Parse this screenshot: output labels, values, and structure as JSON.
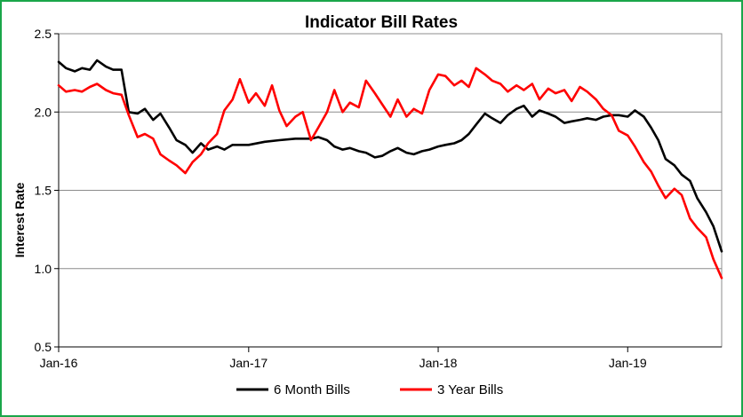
{
  "chart_data": {
    "type": "line",
    "title": "Indicator Bill Rates",
    "xlabel": "",
    "ylabel": "Interest Rate",
    "ylim": [
      0.5,
      2.5
    ],
    "yticks": [
      "0.5",
      "1.0",
      "1.5",
      "2.0",
      "2.5"
    ],
    "xlim": [
      "2016-01",
      "2019-07"
    ],
    "xticks": [
      {
        "date": "2016-01",
        "label": "Jan-16"
      },
      {
        "date": "2017-01",
        "label": "Jan-17"
      },
      {
        "date": "2018-01",
        "label": "Jan-18"
      },
      {
        "date": "2019-01",
        "label": "Jan-19"
      }
    ],
    "grid": "horizontal",
    "legend_position": "bottom",
    "series": [
      {
        "name": "6 Month Bills",
        "color": "#000000",
        "points": [
          [
            "2016-01-01",
            2.32
          ],
          [
            "2016-01-15",
            2.28
          ],
          [
            "2016-02-01",
            2.26
          ],
          [
            "2016-02-15",
            2.28
          ],
          [
            "2016-03-01",
            2.27
          ],
          [
            "2016-03-15",
            2.33
          ],
          [
            "2016-04-01",
            2.29
          ],
          [
            "2016-04-15",
            2.27
          ],
          [
            "2016-05-01",
            2.27
          ],
          [
            "2016-05-15",
            2.0
          ],
          [
            "2016-06-01",
            1.99
          ],
          [
            "2016-06-15",
            2.02
          ],
          [
            "2016-07-01",
            1.95
          ],
          [
            "2016-07-15",
            1.99
          ],
          [
            "2016-08-01",
            1.9
          ],
          [
            "2016-08-15",
            1.82
          ],
          [
            "2016-09-01",
            1.79
          ],
          [
            "2016-09-15",
            1.74
          ],
          [
            "2016-10-01",
            1.8
          ],
          [
            "2016-10-15",
            1.76
          ],
          [
            "2016-11-01",
            1.78
          ],
          [
            "2016-11-15",
            1.76
          ],
          [
            "2016-12-01",
            1.79
          ],
          [
            "2017-01-01",
            1.79
          ],
          [
            "2017-02-01",
            1.81
          ],
          [
            "2017-03-01",
            1.82
          ],
          [
            "2017-04-01",
            1.83
          ],
          [
            "2017-05-01",
            1.83
          ],
          [
            "2017-05-15",
            1.84
          ],
          [
            "2017-06-01",
            1.82
          ],
          [
            "2017-06-15",
            1.78
          ],
          [
            "2017-07-01",
            1.76
          ],
          [
            "2017-07-15",
            1.77
          ],
          [
            "2017-08-01",
            1.75
          ],
          [
            "2017-08-15",
            1.74
          ],
          [
            "2017-09-01",
            1.71
          ],
          [
            "2017-09-15",
            1.72
          ],
          [
            "2017-10-01",
            1.75
          ],
          [
            "2017-10-15",
            1.77
          ],
          [
            "2017-11-01",
            1.74
          ],
          [
            "2017-11-15",
            1.73
          ],
          [
            "2017-12-01",
            1.75
          ],
          [
            "2017-12-15",
            1.76
          ],
          [
            "2018-01-01",
            1.78
          ],
          [
            "2018-01-15",
            1.79
          ],
          [
            "2018-02-01",
            1.8
          ],
          [
            "2018-02-15",
            1.82
          ],
          [
            "2018-03-01",
            1.86
          ],
          [
            "2018-03-15",
            1.92
          ],
          [
            "2018-04-01",
            1.99
          ],
          [
            "2018-04-15",
            1.96
          ],
          [
            "2018-05-01",
            1.93
          ],
          [
            "2018-05-15",
            1.98
          ],
          [
            "2018-06-01",
            2.02
          ],
          [
            "2018-06-15",
            2.04
          ],
          [
            "2018-07-01",
            1.97
          ],
          [
            "2018-07-15",
            2.01
          ],
          [
            "2018-08-01",
            1.99
          ],
          [
            "2018-08-15",
            1.97
          ],
          [
            "2018-09-01",
            1.93
          ],
          [
            "2018-09-15",
            1.94
          ],
          [
            "2018-10-01",
            1.95
          ],
          [
            "2018-10-15",
            1.96
          ],
          [
            "2018-11-01",
            1.95
          ],
          [
            "2018-11-15",
            1.97
          ],
          [
            "2018-12-01",
            1.98
          ],
          [
            "2018-12-15",
            1.98
          ],
          [
            "2019-01-01",
            1.97
          ],
          [
            "2019-01-15",
            2.01
          ],
          [
            "2019-02-01",
            1.97
          ],
          [
            "2019-02-15",
            1.9
          ],
          [
            "2019-03-01",
            1.82
          ],
          [
            "2019-03-15",
            1.7
          ],
          [
            "2019-04-01",
            1.66
          ],
          [
            "2019-04-15",
            1.6
          ],
          [
            "2019-05-01",
            1.56
          ],
          [
            "2019-05-15",
            1.45
          ],
          [
            "2019-06-01",
            1.36
          ],
          [
            "2019-06-15",
            1.27
          ],
          [
            "2019-07-01",
            1.11
          ]
        ]
      },
      {
        "name": "3 Year Bills",
        "color": "#ff0000",
        "points": [
          [
            "2016-01-01",
            2.17
          ],
          [
            "2016-01-15",
            2.13
          ],
          [
            "2016-02-01",
            2.14
          ],
          [
            "2016-02-15",
            2.13
          ],
          [
            "2016-03-01",
            2.16
          ],
          [
            "2016-03-15",
            2.18
          ],
          [
            "2016-04-01",
            2.14
          ],
          [
            "2016-04-15",
            2.12
          ],
          [
            "2016-05-01",
            2.11
          ],
          [
            "2016-05-15",
            1.98
          ],
          [
            "2016-06-01",
            1.84
          ],
          [
            "2016-06-15",
            1.86
          ],
          [
            "2016-07-01",
            1.83
          ],
          [
            "2016-07-15",
            1.73
          ],
          [
            "2016-08-01",
            1.69
          ],
          [
            "2016-08-15",
            1.66
          ],
          [
            "2016-09-01",
            1.61
          ],
          [
            "2016-09-15",
            1.68
          ],
          [
            "2016-10-01",
            1.73
          ],
          [
            "2016-10-15",
            1.8
          ],
          [
            "2016-11-01",
            1.86
          ],
          [
            "2016-11-15",
            2.01
          ],
          [
            "2016-12-01",
            2.08
          ],
          [
            "2016-12-15",
            2.21
          ],
          [
            "2017-01-01",
            2.06
          ],
          [
            "2017-01-15",
            2.12
          ],
          [
            "2017-02-01",
            2.04
          ],
          [
            "2017-02-15",
            2.17
          ],
          [
            "2017-03-01",
            2.01
          ],
          [
            "2017-03-15",
            1.91
          ],
          [
            "2017-04-01",
            1.97
          ],
          [
            "2017-04-15",
            2.0
          ],
          [
            "2017-05-01",
            1.82
          ],
          [
            "2017-05-15",
            1.9
          ],
          [
            "2017-06-01",
            2.0
          ],
          [
            "2017-06-15",
            2.14
          ],
          [
            "2017-07-01",
            2.0
          ],
          [
            "2017-07-15",
            2.06
          ],
          [
            "2017-08-01",
            2.03
          ],
          [
            "2017-08-15",
            2.2
          ],
          [
            "2017-09-01",
            2.12
          ],
          [
            "2017-09-15",
            2.05
          ],
          [
            "2017-10-01",
            1.97
          ],
          [
            "2017-10-15",
            2.08
          ],
          [
            "2017-11-01",
            1.97
          ],
          [
            "2017-11-15",
            2.02
          ],
          [
            "2017-12-01",
            1.99
          ],
          [
            "2017-12-15",
            2.14
          ],
          [
            "2018-01-01",
            2.24
          ],
          [
            "2018-01-15",
            2.23
          ],
          [
            "2018-02-01",
            2.17
          ],
          [
            "2018-02-15",
            2.2
          ],
          [
            "2018-03-01",
            2.16
          ],
          [
            "2018-03-15",
            2.28
          ],
          [
            "2018-04-01",
            2.24
          ],
          [
            "2018-04-15",
            2.2
          ],
          [
            "2018-05-01",
            2.18
          ],
          [
            "2018-05-15",
            2.13
          ],
          [
            "2018-06-01",
            2.17
          ],
          [
            "2018-06-15",
            2.14
          ],
          [
            "2018-07-01",
            2.18
          ],
          [
            "2018-07-15",
            2.08
          ],
          [
            "2018-08-01",
            2.15
          ],
          [
            "2018-08-15",
            2.12
          ],
          [
            "2018-09-01",
            2.14
          ],
          [
            "2018-09-15",
            2.07
          ],
          [
            "2018-10-01",
            2.16
          ],
          [
            "2018-10-15",
            2.13
          ],
          [
            "2018-11-01",
            2.08
          ],
          [
            "2018-11-15",
            2.02
          ],
          [
            "2018-12-01",
            1.98
          ],
          [
            "2018-12-15",
            1.88
          ],
          [
            "2019-01-01",
            1.85
          ],
          [
            "2019-01-15",
            1.78
          ],
          [
            "2019-02-01",
            1.68
          ],
          [
            "2019-02-15",
            1.62
          ],
          [
            "2019-03-01",
            1.53
          ],
          [
            "2019-03-15",
            1.45
          ],
          [
            "2019-04-01",
            1.51
          ],
          [
            "2019-04-15",
            1.47
          ],
          [
            "2019-05-01",
            1.32
          ],
          [
            "2019-05-15",
            1.26
          ],
          [
            "2019-06-01",
            1.2
          ],
          [
            "2019-06-15",
            1.06
          ],
          [
            "2019-07-01",
            0.94
          ]
        ]
      }
    ]
  }
}
